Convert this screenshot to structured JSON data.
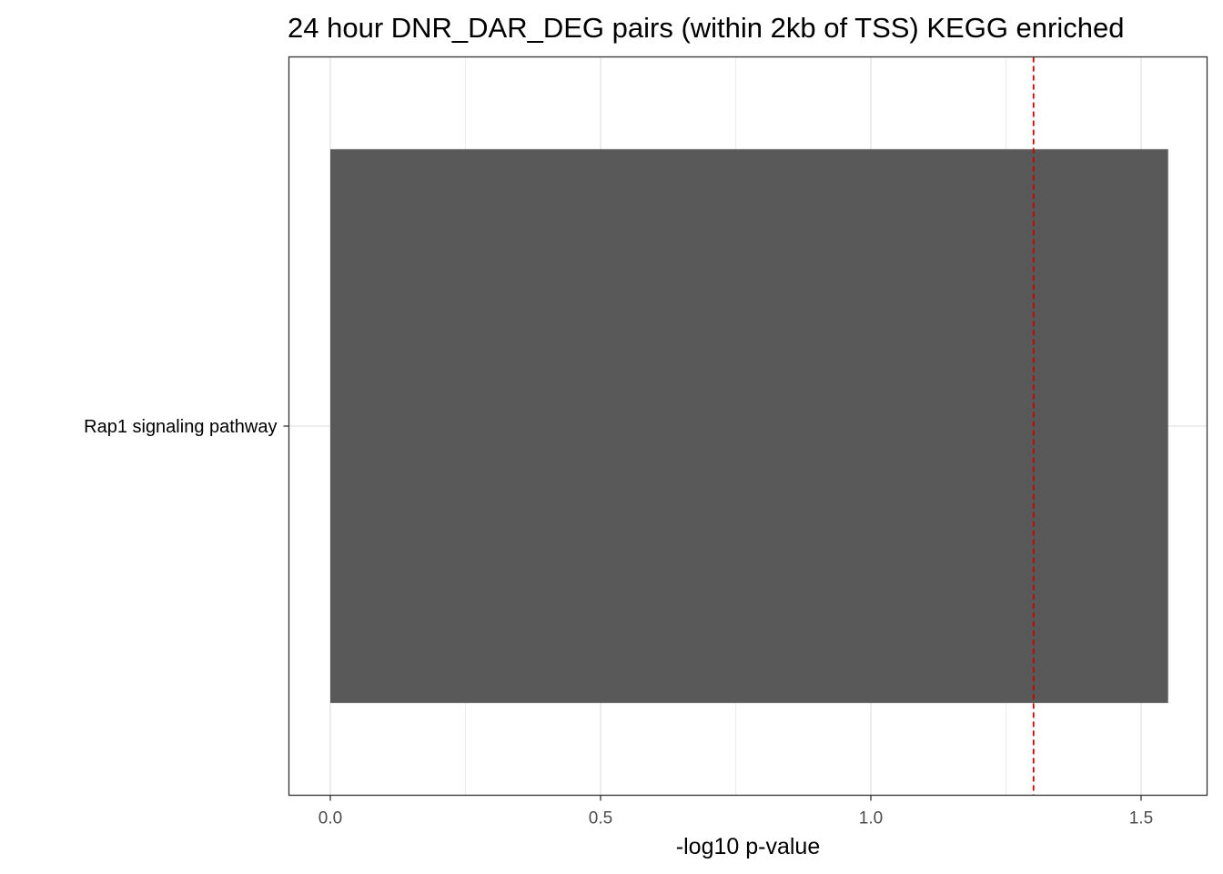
{
  "chart_data": {
    "type": "bar",
    "orientation": "horizontal",
    "title": "24 hour DNR_DAR_DEG pairs (within 2kb of TSS) KEGG enriched",
    "xlabel": "-log10 p-value",
    "ylabel": "",
    "categories": [
      "Rap1 signaling pathway"
    ],
    "values": [
      1.55
    ],
    "xlim": [
      -0.08,
      1.63
    ],
    "xticks": [
      0.0,
      0.5,
      1.0,
      1.5
    ],
    "xtick_labels": [
      "0.0",
      "0.5",
      "1.0",
      "1.5"
    ],
    "threshold_line": {
      "x": 1.301,
      "style": "dashed",
      "color": "#cc0000"
    },
    "bar_color": "#595959",
    "grid": true,
    "legend": "none"
  }
}
